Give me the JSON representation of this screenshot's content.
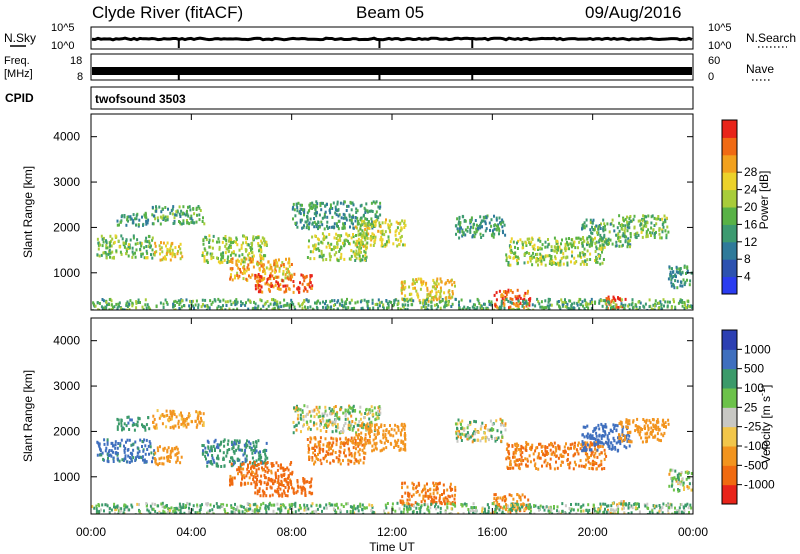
{
  "header": {
    "station": "Clyde River (fitACF)",
    "beam": "Beam 05",
    "date": "09/Aug/2016"
  },
  "nsky_panel": {
    "left_label": "N.Sky",
    "right_label": "N.Search",
    "left_ticks": [
      {
        "label": "10^5",
        "y": "top"
      },
      {
        "label": "10^0",
        "y": "bottom"
      }
    ],
    "right_ticks": [
      {
        "label": "10^5",
        "y": "top"
      },
      {
        "label": "10^0",
        "y": "bottom"
      }
    ]
  },
  "freq_panel": {
    "left_label_1": "Freq.",
    "left_label_2": "[MHz]",
    "right_label": "Nave",
    "left_ticks": [
      "18",
      "8"
    ],
    "right_ticks": [
      "60",
      "0"
    ]
  },
  "cpid_panel": {
    "label": "CPID",
    "program": "twofsound  3503"
  },
  "x_axis": {
    "label": "Time UT",
    "ticks": [
      "00:00",
      "04:00",
      "08:00",
      "12:00",
      "16:00",
      "20:00",
      "00:00"
    ],
    "range_hours": [
      0,
      24
    ]
  },
  "power_panel": {
    "ylabel": "Slant Range [km]",
    "yticks": [
      "1000",
      "2000",
      "3000",
      "4000"
    ],
    "colorbar_label": "Power [dB]",
    "colorbar_ticks": [
      "4",
      "8",
      "12",
      "16",
      "20",
      "24",
      "28"
    ],
    "colors": [
      "#2a3cf0",
      "#2c52b0",
      "#2f7a9a",
      "#3c9a70",
      "#58b246",
      "#a8cc3a",
      "#ecd22a",
      "#f2a11e",
      "#f06a14",
      "#e8241a"
    ]
  },
  "velocity_panel": {
    "ylabel": "Slant Range [km]",
    "yticks": [
      "1000",
      "2000",
      "3000",
      "4000"
    ],
    "colorbar_label": "Velocity [m s",
    "colorbar_label_sup": "-1",
    "colorbar_label_end": "]",
    "colorbar_ticks": [
      "1000",
      "500",
      "100",
      "25",
      "-25",
      "-100",
      "-500",
      "-1000"
    ],
    "colors": [
      "#2c3fb2",
      "#3f6fbe",
      "#3b9a6a",
      "#6cc24a",
      "#c8c8c4",
      "#f2c64a",
      "#f2941e",
      "#f06a10",
      "#e8241a"
    ]
  },
  "chart_data": {
    "type": "heatmap",
    "title": "Clyde River (fitACF)  Beam 05  09/Aug/2016",
    "xlabel": "Time UT",
    "ylabel": "Slant Range [km]",
    "xlim_hours": [
      0,
      24
    ],
    "ylim_km": [
      180,
      4500
    ],
    "power_scale_db": [
      0,
      30
    ],
    "velocity_scale_ms": [
      -1000,
      1000
    ],
    "echo_regions": [
      {
        "t": [
          0.2,
          2.5
        ],
        "r": [
          1350,
          1850
        ],
        "power_db": 14,
        "velocity": 600
      },
      {
        "t": [
          1.0,
          2.3
        ],
        "r": [
          2050,
          2350
        ],
        "power_db": 10,
        "velocity": 400
      },
      {
        "t": [
          2.4,
          4.5
        ],
        "r": [
          2100,
          2500
        ],
        "power_db": 12,
        "velocity": -200
      },
      {
        "t": [
          2.5,
          3.6
        ],
        "r": [
          1300,
          1700
        ],
        "power_db": 20,
        "velocity": -350
      },
      {
        "t": [
          4.4,
          7.0
        ],
        "r": [
          1250,
          1850
        ],
        "power_db": 16,
        "velocity": 450
      },
      {
        "t": [
          5.5,
          8.0
        ],
        "r": [
          850,
          1350
        ],
        "power_db": 22,
        "velocity": -600
      },
      {
        "t": [
          6.5,
          8.8
        ],
        "r": [
          600,
          1000
        ],
        "power_db": 27,
        "velocity": -700
      },
      {
        "t": [
          8.6,
          11.0
        ],
        "r": [
          1300,
          1900
        ],
        "power_db": 16,
        "velocity": -500
      },
      {
        "t": [
          8.0,
          11.5
        ],
        "r": [
          2000,
          2600
        ],
        "power_db": 10,
        "velocity": 20
      },
      {
        "t": [
          10.5,
          12.5
        ],
        "r": [
          1600,
          2200
        ],
        "power_db": 18,
        "velocity": -300
      },
      {
        "t": [
          12.3,
          14.5
        ],
        "r": [
          400,
          900
        ],
        "power_db": 20,
        "velocity": -550
      },
      {
        "t": [
          14.5,
          16.5
        ],
        "r": [
          1800,
          2300
        ],
        "power_db": 10,
        "velocity": 10
      },
      {
        "t": [
          16.0,
          17.5
        ],
        "r": [
          250,
          650
        ],
        "power_db": 28,
        "velocity": -450
      },
      {
        "t": [
          16.5,
          20.5
        ],
        "r": [
          1200,
          1800
        ],
        "power_db": 16,
        "velocity": -500
      },
      {
        "t": [
          19.5,
          21.5
        ],
        "r": [
          1600,
          2200
        ],
        "power_db": 12,
        "velocity": 700
      },
      {
        "t": [
          20.5,
          21.3
        ],
        "r": [
          200,
          500
        ],
        "power_db": 29,
        "velocity": -20
      },
      {
        "t": [
          21.0,
          23.0
        ],
        "r": [
          1800,
          2300
        ],
        "power_db": 14,
        "velocity": -250
      },
      {
        "t": [
          23.0,
          24.0
        ],
        "r": [
          700,
          1200
        ],
        "power_db": 10,
        "velocity": 15
      },
      {
        "t": [
          0.0,
          24.0
        ],
        "r": [
          190,
          450
        ],
        "power_db": 12,
        "velocity": 100
      }
    ]
  }
}
